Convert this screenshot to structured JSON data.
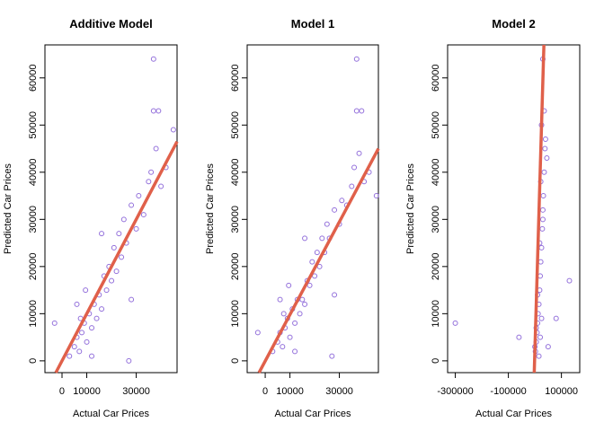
{
  "chart_data": [
    {
      "type": "scatter",
      "title": "Additive Model",
      "xlabel": "Actual Car Prices",
      "ylabel": "Predicted Car Prices",
      "color": "#9370db",
      "x": [
        5000,
        6000,
        7000,
        8000,
        9000,
        7500,
        10000,
        11000,
        12000,
        13000,
        14000,
        15000,
        16000,
        17000,
        18000,
        19000,
        20000,
        21000,
        22000,
        23000,
        24000,
        25000,
        26000,
        28000,
        30000,
        31000,
        33000,
        35000,
        36000,
        38000,
        40000,
        42000,
        37000,
        39000,
        37000,
        45000,
        -3000,
        3000,
        12000,
        27000,
        16000,
        28000,
        6000,
        9500
      ],
      "y": [
        3000,
        5000,
        2000,
        6000,
        8000,
        9000,
        4000,
        10000,
        7000,
        12000,
        9000,
        14000,
        11000,
        18000,
        15000,
        20000,
        17000,
        24000,
        19000,
        27000,
        22000,
        30000,
        25000,
        33000,
        28000,
        35000,
        31000,
        38000,
        40000,
        45000,
        37000,
        41000,
        53000,
        53000,
        64000,
        49000,
        8000,
        1000,
        1000,
        0,
        27000,
        13000,
        12000,
        15000
      ],
      "line": {
        "x": [
          -2500,
          46500
        ],
        "y": [
          -2500,
          46500
        ],
        "color": "#e0604a"
      },
      "xlim": [
        -6900,
        46500
      ],
      "ylim": [
        -2500,
        67000
      ],
      "xticks": [
        0,
        10000,
        30000
      ],
      "yticks": [
        0,
        10000,
        20000,
        30000,
        40000,
        50000,
        60000
      ]
    },
    {
      "type": "scatter",
      "title": "Model 1",
      "xlabel": "Actual Car Prices",
      "ylabel": "Predicted Car Prices",
      "color": "#9370db",
      "x": [
        5000,
        6000,
        7000,
        8000,
        9000,
        7500,
        10000,
        11000,
        12000,
        13000,
        14000,
        15000,
        16000,
        17000,
        18000,
        19000,
        20000,
        21000,
        22000,
        23000,
        24000,
        25000,
        26000,
        28000,
        30000,
        31000,
        33000,
        35000,
        36000,
        38000,
        40000,
        42000,
        37000,
        39000,
        37000,
        45000,
        -3000,
        3000,
        12000,
        27000,
        16000,
        28000,
        6000,
        9500
      ],
      "y": [
        4000,
        6000,
        3000,
        7000,
        9000,
        10000,
        5000,
        11000,
        8000,
        13000,
        10000,
        13000,
        12000,
        17000,
        16000,
        21000,
        18000,
        23000,
        20000,
        26000,
        23000,
        29000,
        26000,
        32000,
        29000,
        34000,
        33000,
        37000,
        41000,
        44000,
        38000,
        40000,
        53000,
        53000,
        64000,
        35000,
        6000,
        2000,
        2000,
        1000,
        26000,
        14000,
        13000,
        16000
      ],
      "line": {
        "x": [
          -2500,
          45800
        ],
        "y": [
          -2500,
          45000
        ],
        "color": "#e0604a"
      },
      "xlim": [
        -7300,
        45800
      ],
      "ylim": [
        -2500,
        67000
      ],
      "xticks": [
        0,
        10000,
        30000
      ],
      "yticks": [
        0,
        10000,
        20000,
        30000,
        40000,
        50000,
        60000
      ]
    },
    {
      "type": "scatter",
      "title": "Model 2",
      "xlabel": "Actual Car Prices",
      "ylabel": "Predicted Car Prices",
      "color": "#9370db",
      "x": [
        -300000,
        -60000,
        130000,
        80000,
        50000,
        2000,
        5000,
        8000,
        10000,
        12000,
        15000,
        18000,
        20000,
        22000,
        25000,
        28000,
        30000,
        32000,
        35000,
        38000,
        40000,
        15000,
        20000,
        25000,
        30000,
        10000,
        5000,
        0,
        18000,
        22000,
        35000,
        45000,
        30000,
        25000
      ],
      "y": [
        8000,
        5000,
        17000,
        9000,
        3000,
        2000,
        4000,
        6000,
        8000,
        10000,
        12000,
        15000,
        18000,
        21000,
        24000,
        28000,
        32000,
        35000,
        40000,
        45000,
        47000,
        1000,
        5000,
        9000,
        30000,
        14000,
        7000,
        3000,
        25000,
        38000,
        53000,
        43000,
        64000,
        50000
      ],
      "line": {
        "x": [
          -2500,
          34000
        ],
        "y": [
          -2500,
          67000
        ],
        "color": "#e0604a"
      },
      "xlim": [
        -329000,
        169000
      ],
      "ylim": [
        -2500,
        67000
      ],
      "xticks": [
        -300000,
        -100000,
        100000
      ],
      "yticks": [
        0,
        10000,
        20000,
        30000,
        40000,
        50000,
        60000
      ]
    }
  ]
}
